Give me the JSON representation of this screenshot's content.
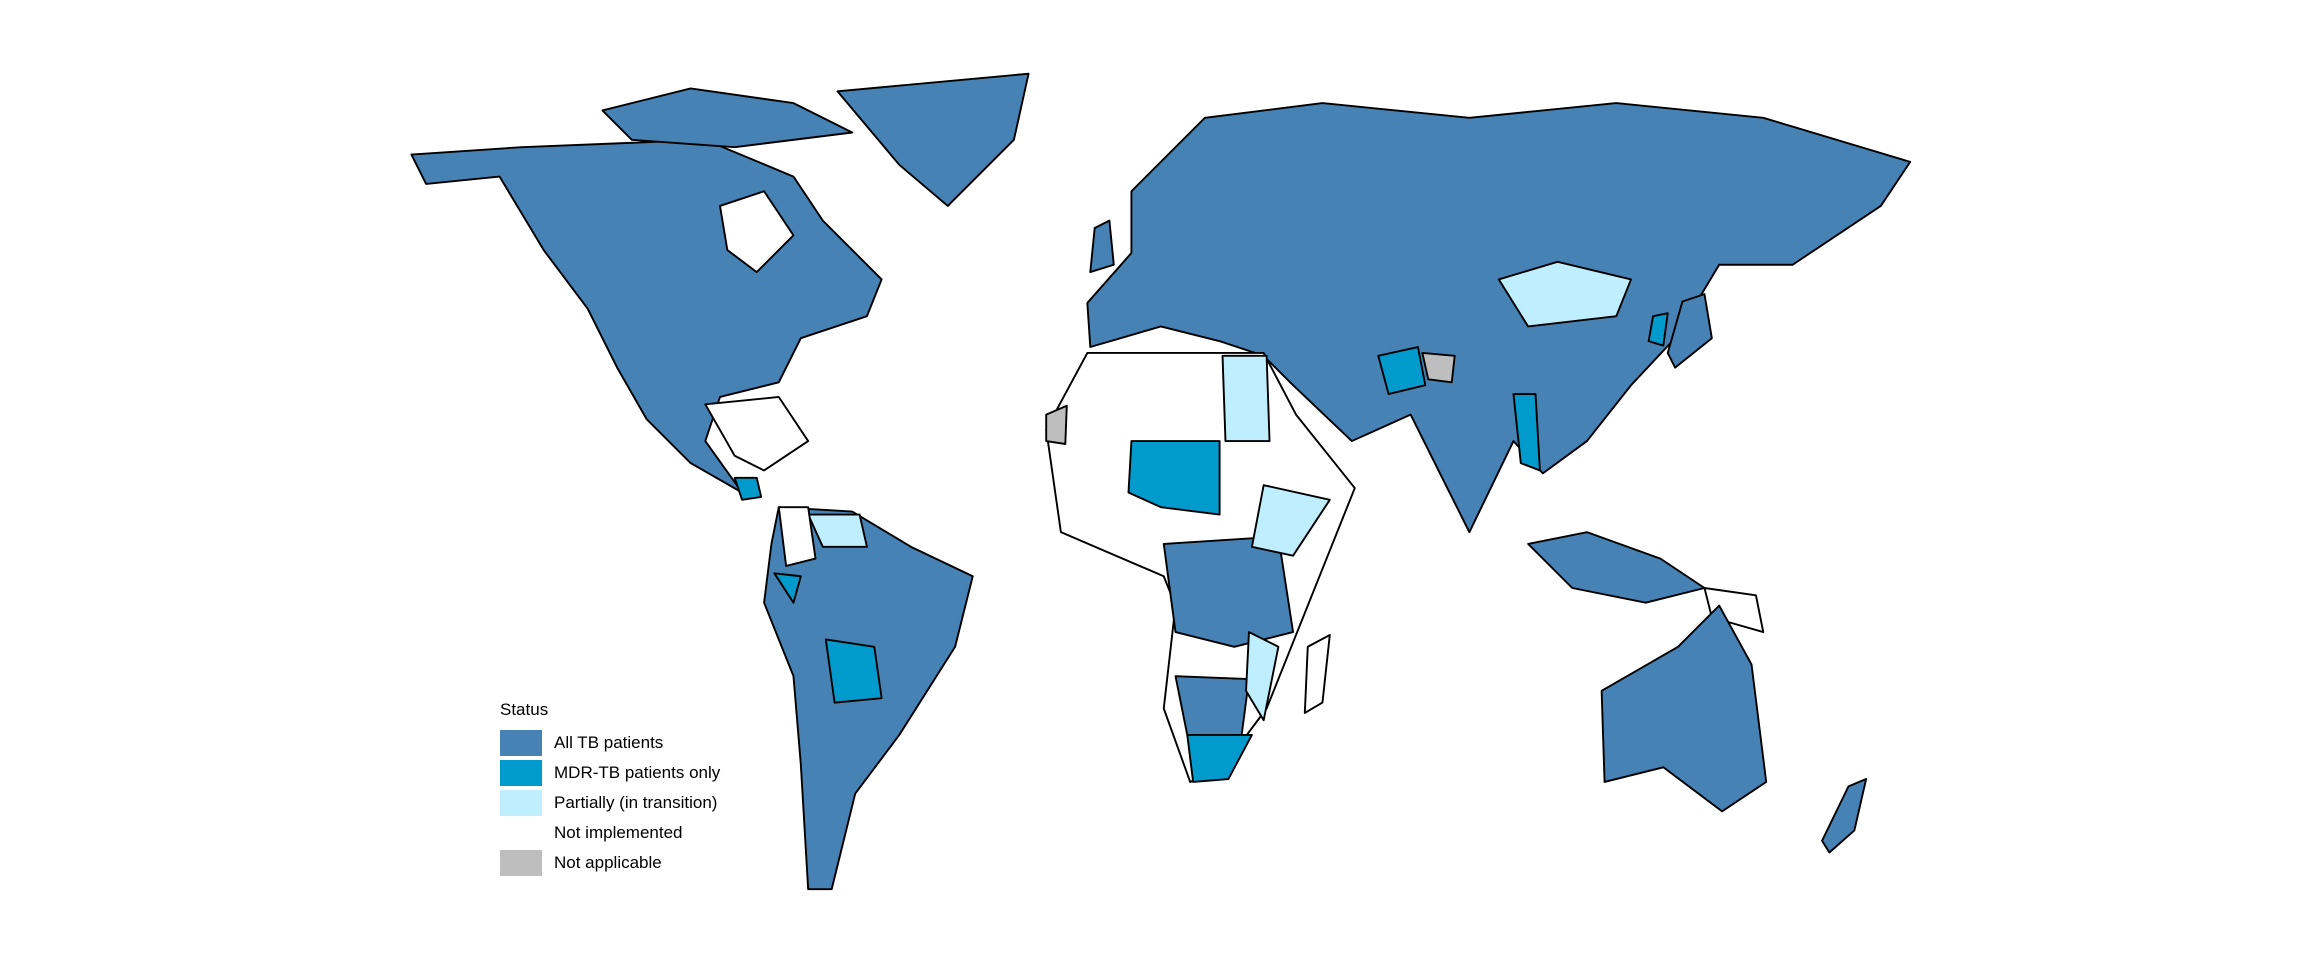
{
  "legend": {
    "title": "Status",
    "items": [
      {
        "key": "all",
        "label": "All TB patients",
        "color": "#4682B4"
      },
      {
        "key": "mdr",
        "label": "MDR-TB patients only",
        "color": "#009ACD"
      },
      {
        "key": "partial",
        "label": "Partially (in transition)",
        "color": "#BFEFFF"
      },
      {
        "key": "none",
        "label": "Not implemented",
        "color": "#FFFFFF"
      },
      {
        "key": "na",
        "label": "Not applicable",
        "color": "#BEBEBE"
      }
    ]
  }
}
